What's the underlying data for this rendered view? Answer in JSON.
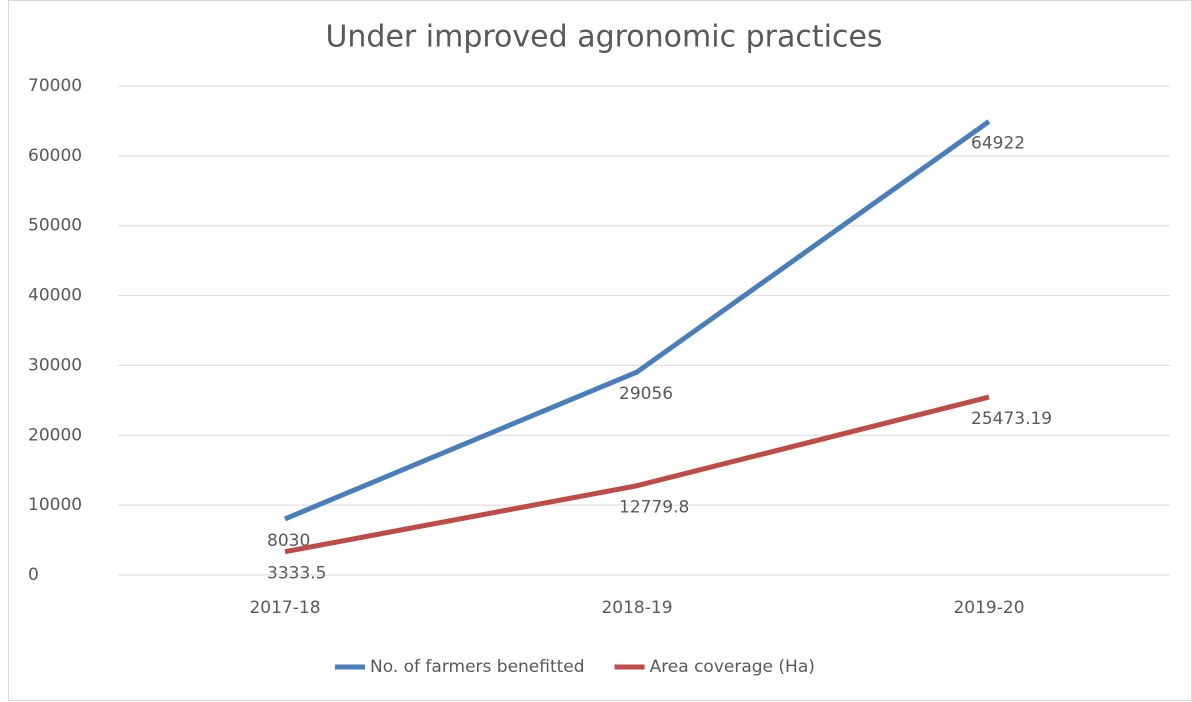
{
  "chart_data": {
    "type": "line",
    "title": "Under improved agronomic practices",
    "categories": [
      "2017-18",
      "2018-19",
      "2019-20"
    ],
    "series": [
      {
        "name": "No. of farmers benefitted",
        "color": "#4a7ebb",
        "values": [
          8030,
          29056,
          64922
        ]
      },
      {
        "name": "Area coverage (Ha)",
        "color": "#be4b48",
        "values": [
          3333.5,
          12779.8,
          25473.19
        ]
      }
    ],
    "ylim": [
      0,
      70000
    ],
    "yticks": [
      0,
      10000,
      20000,
      30000,
      40000,
      50000,
      60000,
      70000
    ],
    "grid": true,
    "legend": "bottom"
  }
}
